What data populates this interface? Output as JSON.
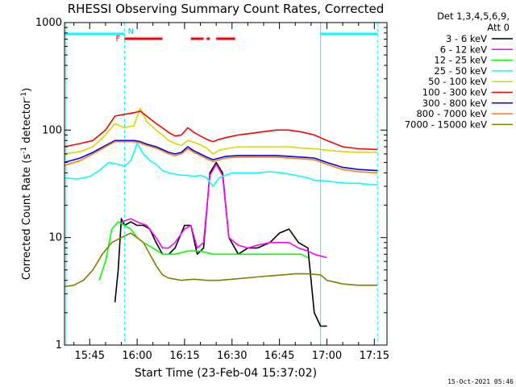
{
  "chart_data": {
    "type": "line",
    "title": "RHESSI Observing Summary Count Rates, Corrected",
    "xlabel": "Start Time (23-Feb-04 15:37:02)",
    "ylabel_main": "Corrected Count Rate (s",
    "ylabel_sup1": "-1",
    "ylabel_mid": " detector",
    "ylabel_sup2": "-1",
    "ylabel_end": ")",
    "y_scale": "log",
    "ylim": [
      1,
      1000
    ],
    "xlim": [
      "15:37:02",
      "17:19:00"
    ],
    "x_ticks": [
      "15:45",
      "16:00",
      "16:15",
      "16:30",
      "16:45",
      "17:00",
      "17:15"
    ],
    "y_ticks": [
      "1",
      "10",
      "100",
      "1000"
    ],
    "grid": false,
    "legend_position": "right",
    "legend_header": [
      "Det 1,3,4,5,6,9,",
      "Att 0"
    ],
    "footer_date": "15-Oct-2021 05:46",
    "markers": {
      "F": "F",
      "N": "N"
    },
    "series": [
      {
        "name": "3 - 6 keV",
        "color": "#000000",
        "points": [
          [
            "15:37",
            0
          ],
          [
            "15:52",
            0
          ],
          [
            "15:53",
            2.5
          ],
          [
            "15:54",
            5
          ],
          [
            "15:55",
            15
          ],
          [
            "15:56",
            13
          ],
          [
            "15:58",
            14
          ],
          [
            "16:00",
            13
          ],
          [
            "16:02",
            13
          ],
          [
            "16:04",
            12
          ],
          [
            "16:06",
            9
          ],
          [
            "16:08",
            7
          ],
          [
            "16:10",
            7
          ],
          [
            "16:12",
            8
          ],
          [
            "16:15",
            13
          ],
          [
            "16:17",
            13
          ],
          [
            "16:19",
            7
          ],
          [
            "16:21",
            8
          ],
          [
            "16:23",
            40
          ],
          [
            "16:25",
            50
          ],
          [
            "16:27",
            40
          ],
          [
            "16:29",
            10
          ],
          [
            "16:32",
            7
          ],
          [
            "16:35",
            8
          ],
          [
            "16:38",
            8
          ],
          [
            "16:42",
            9
          ],
          [
            "16:45",
            11
          ],
          [
            "16:48",
            12
          ],
          [
            "16:51",
            9
          ],
          [
            "16:54",
            8
          ],
          [
            "16:56",
            2
          ],
          [
            "16:58",
            1.5
          ],
          [
            "17:00",
            1.5
          ]
        ]
      },
      {
        "name": "6 - 12 keV",
        "color": "#ff00ff",
        "points": [
          [
            "15:55",
            14
          ],
          [
            "15:58",
            15
          ],
          [
            "16:00",
            14
          ],
          [
            "16:03",
            13
          ],
          [
            "16:06",
            10
          ],
          [
            "16:08",
            8
          ],
          [
            "16:10",
            8
          ],
          [
            "16:12",
            9
          ],
          [
            "16:15",
            12
          ],
          [
            "16:17",
            13
          ],
          [
            "16:19",
            8
          ],
          [
            "16:21",
            9
          ],
          [
            "16:23",
            38
          ],
          [
            "16:25",
            48
          ],
          [
            "16:27",
            38
          ],
          [
            "16:29",
            10
          ],
          [
            "16:32",
            8.5
          ],
          [
            "16:35",
            8
          ],
          [
            "16:38",
            8.5
          ],
          [
            "16:42",
            9
          ],
          [
            "16:45",
            9
          ],
          [
            "16:48",
            9
          ],
          [
            "16:51",
            8
          ],
          [
            "16:54",
            7.5
          ],
          [
            "16:56",
            7
          ],
          [
            "17:00",
            6.5
          ]
        ]
      },
      {
        "name": "12 - 25 keV",
        "color": "#00ff00",
        "points": [
          [
            "15:48",
            4
          ],
          [
            "15:50",
            6
          ],
          [
            "15:52",
            12
          ],
          [
            "15:54",
            14
          ],
          [
            "15:56",
            13
          ],
          [
            "15:58",
            12
          ],
          [
            "16:00",
            10
          ],
          [
            "16:02",
            9
          ],
          [
            "16:05",
            8
          ],
          [
            "16:08",
            7
          ],
          [
            "16:12",
            7
          ],
          [
            "16:16",
            7.5
          ],
          [
            "16:20",
            7.5
          ],
          [
            "16:24",
            7
          ],
          [
            "16:28",
            7
          ],
          [
            "16:32",
            7
          ],
          [
            "16:36",
            7
          ],
          [
            "16:40",
            7
          ],
          [
            "16:44",
            7
          ],
          [
            "16:48",
            7
          ],
          [
            "16:52",
            7
          ],
          [
            "16:54",
            6.5
          ]
        ]
      },
      {
        "name": "25 - 50 keV",
        "color": "#00ffff",
        "points": [
          [
            "15:37",
            36
          ],
          [
            "15:41",
            35
          ],
          [
            "15:45",
            37
          ],
          [
            "15:48",
            42
          ],
          [
            "15:51",
            50
          ],
          [
            "15:54",
            48
          ],
          [
            "15:56",
            46
          ],
          [
            "15:58",
            52
          ],
          [
            "16:00",
            75
          ],
          [
            "16:02",
            60
          ],
          [
            "16:04",
            52
          ],
          [
            "16:06",
            48
          ],
          [
            "16:08",
            42
          ],
          [
            "16:10",
            40
          ],
          [
            "16:12",
            39
          ],
          [
            "16:14",
            38
          ],
          [
            "16:16",
            38
          ],
          [
            "16:18",
            37
          ],
          [
            "16:20",
            38
          ],
          [
            "16:22",
            36
          ],
          [
            "16:24",
            30
          ],
          [
            "16:26",
            36
          ],
          [
            "16:28",
            38
          ],
          [
            "16:30",
            40
          ],
          [
            "16:34",
            40
          ],
          [
            "16:38",
            40
          ],
          [
            "16:42",
            41
          ],
          [
            "16:46",
            40
          ],
          [
            "16:50",
            38
          ],
          [
            "16:54",
            36
          ],
          [
            "16:56",
            34
          ],
          [
            "16:58",
            34
          ],
          [
            "17:02",
            33
          ],
          [
            "17:06",
            32
          ],
          [
            "17:10",
            32
          ],
          [
            "17:14",
            31
          ],
          [
            "17:16",
            31
          ]
        ]
      },
      {
        "name": "50 - 100 keV",
        "color": "#d8d800",
        "points": [
          [
            "15:37",
            60
          ],
          [
            "15:42",
            63
          ],
          [
            "15:46",
            70
          ],
          [
            "15:50",
            90
          ],
          [
            "15:53",
            115
          ],
          [
            "15:56",
            105
          ],
          [
            "15:59",
            110
          ],
          [
            "16:01",
            160
          ],
          [
            "16:03",
            120
          ],
          [
            "16:06",
            100
          ],
          [
            "16:08",
            90
          ],
          [
            "16:10",
            80
          ],
          [
            "16:12",
            75
          ],
          [
            "16:14",
            72
          ],
          [
            "16:16",
            80
          ],
          [
            "16:18",
            77
          ],
          [
            "16:20",
            73
          ],
          [
            "16:22",
            68
          ],
          [
            "16:24",
            60
          ],
          [
            "16:26",
            65
          ],
          [
            "16:28",
            67
          ],
          [
            "16:32",
            70
          ],
          [
            "16:38",
            70
          ],
          [
            "16:44",
            70
          ],
          [
            "16:48",
            70
          ],
          [
            "16:52",
            68
          ],
          [
            "16:56",
            67
          ],
          [
            "17:00",
            65
          ],
          [
            "17:05",
            63
          ],
          [
            "17:10",
            62
          ],
          [
            "17:16",
            62
          ]
        ]
      },
      {
        "name": "100 - 300 keV",
        "color": "#ff0000",
        "points": [
          [
            "15:37",
            70
          ],
          [
            "15:42",
            75
          ],
          [
            "15:46",
            80
          ],
          [
            "15:50",
            100
          ],
          [
            "15:53",
            135
          ],
          [
            "15:56",
            140
          ],
          [
            "15:59",
            145
          ],
          [
            "16:01",
            150
          ],
          [
            "16:03",
            135
          ],
          [
            "16:06",
            115
          ],
          [
            "16:08",
            105
          ],
          [
            "16:10",
            95
          ],
          [
            "16:12",
            88
          ],
          [
            "16:14",
            90
          ],
          [
            "16:16",
            105
          ],
          [
            "16:18",
            95
          ],
          [
            "16:20",
            88
          ],
          [
            "16:22",
            82
          ],
          [
            "16:24",
            78
          ],
          [
            "16:26",
            82
          ],
          [
            "16:28",
            85
          ],
          [
            "16:32",
            90
          ],
          [
            "16:38",
            95
          ],
          [
            "16:44",
            100
          ],
          [
            "16:48",
            100
          ],
          [
            "16:52",
            96
          ],
          [
            "16:56",
            90
          ],
          [
            "17:00",
            80
          ],
          [
            "17:05",
            70
          ],
          [
            "17:10",
            67
          ],
          [
            "17:16",
            66
          ]
        ]
      },
      {
        "name": "300 - 800 keV",
        "color": "#0000ff",
        "points": [
          [
            "15:37",
            50
          ],
          [
            "15:42",
            55
          ],
          [
            "15:46",
            62
          ],
          [
            "15:50",
            72
          ],
          [
            "15:53",
            80
          ],
          [
            "15:56",
            80
          ],
          [
            "15:59",
            80
          ],
          [
            "16:01",
            78
          ],
          [
            "16:03",
            74
          ],
          [
            "16:06",
            70
          ],
          [
            "16:08",
            66
          ],
          [
            "16:10",
            62
          ],
          [
            "16:12",
            60
          ],
          [
            "16:14",
            62
          ],
          [
            "16:16",
            70
          ],
          [
            "16:18",
            64
          ],
          [
            "16:20",
            60
          ],
          [
            "16:22",
            56
          ],
          [
            "16:24",
            53
          ],
          [
            "16:26",
            55
          ],
          [
            "16:28",
            57
          ],
          [
            "16:32",
            58
          ],
          [
            "16:38",
            58
          ],
          [
            "16:44",
            58
          ],
          [
            "16:48",
            57
          ],
          [
            "16:52",
            56
          ],
          [
            "16:56",
            55
          ],
          [
            "17:00",
            50
          ],
          [
            "17:05",
            45
          ],
          [
            "17:10",
            43
          ],
          [
            "17:16",
            42
          ]
        ]
      },
      {
        "name": "800 - 7000 keV",
        "color": "#ff8000",
        "points": [
          [
            "15:37",
            47
          ],
          [
            "15:42",
            52
          ],
          [
            "15:46",
            60
          ],
          [
            "15:50",
            70
          ],
          [
            "15:53",
            78
          ],
          [
            "15:56",
            78
          ],
          [
            "15:59",
            78
          ],
          [
            "16:01",
            76
          ],
          [
            "16:03",
            72
          ],
          [
            "16:06",
            68
          ],
          [
            "16:08",
            64
          ],
          [
            "16:10",
            60
          ],
          [
            "16:12",
            58
          ],
          [
            "16:14",
            60
          ],
          [
            "16:16",
            67
          ],
          [
            "16:18",
            62
          ],
          [
            "16:20",
            58
          ],
          [
            "16:22",
            54
          ],
          [
            "16:24",
            51
          ],
          [
            "16:26",
            53
          ],
          [
            "16:28",
            55
          ],
          [
            "16:32",
            56
          ],
          [
            "16:38",
            56
          ],
          [
            "16:44",
            56
          ],
          [
            "16:48",
            55
          ],
          [
            "16:52",
            54
          ],
          [
            "16:56",
            53
          ],
          [
            "17:00",
            48
          ],
          [
            "17:05",
            43
          ],
          [
            "17:10",
            41
          ],
          [
            "17:16",
            40
          ]
        ]
      },
      {
        "name": "7000 - 15000 keV",
        "color": "#808000",
        "points": [
          [
            "15:37",
            3.5
          ],
          [
            "15:40",
            3.6
          ],
          [
            "15:43",
            4
          ],
          [
            "15:46",
            5
          ],
          [
            "15:49",
            7
          ],
          [
            "15:52",
            9
          ],
          [
            "15:55",
            10
          ],
          [
            "15:58",
            11
          ],
          [
            "16:00",
            10
          ],
          [
            "16:02",
            9
          ],
          [
            "16:04",
            7
          ],
          [
            "16:06",
            5.5
          ],
          [
            "16:08",
            4.5
          ],
          [
            "16:10",
            4.2
          ],
          [
            "16:14",
            4
          ],
          [
            "16:18",
            4.1
          ],
          [
            "16:22",
            4
          ],
          [
            "16:26",
            4
          ],
          [
            "16:30",
            4.1
          ],
          [
            "16:34",
            4.2
          ],
          [
            "16:38",
            4.3
          ],
          [
            "16:42",
            4.4
          ],
          [
            "16:46",
            4.5
          ],
          [
            "16:50",
            4.6
          ],
          [
            "16:54",
            4.6
          ],
          [
            "16:58",
            4.5
          ],
          [
            "17:00",
            4
          ],
          [
            "17:05",
            3.7
          ],
          [
            "17:10",
            3.6
          ],
          [
            "17:16",
            3.6
          ]
        ]
      }
    ],
    "shaded_intervals": [
      {
        "label": "F",
        "color": "#ff0000",
        "ranges": [
          [
            "15:56",
            "16:08"
          ],
          [
            "16:17",
            "16:21"
          ],
          [
            "16:22",
            "16:23"
          ],
          [
            "16:25",
            "16:31"
          ]
        ]
      },
      {
        "label": "N",
        "color": "#00ffff",
        "ranges": [
          [
            "15:37",
            "15:56"
          ],
          [
            "16:58",
            "17:16"
          ]
        ]
      }
    ],
    "vertical_lines": [
      {
        "time": "15:37:30",
        "style": "solid",
        "color": "#00ffff"
      },
      {
        "time": "15:56",
        "style": "dashed",
        "color": "#00ffff"
      },
      {
        "time": "16:58",
        "style": "solid",
        "color": "#00ffff"
      },
      {
        "time": "17:16",
        "style": "dashed",
        "color": "#00ffff"
      }
    ]
  }
}
